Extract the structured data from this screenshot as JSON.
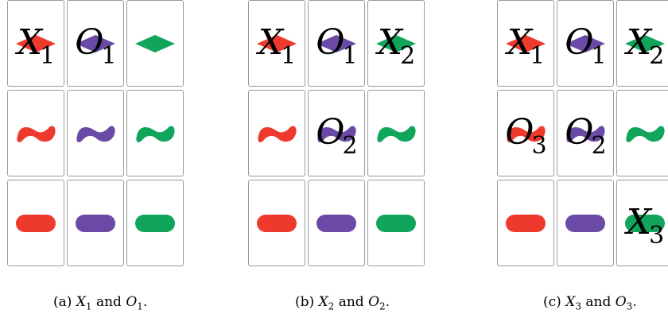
{
  "colors": {
    "red": "#ee3a2d",
    "purple": "#6a4aa6",
    "green": "#10a55a"
  },
  "shapes": {
    "rows": [
      "diamond",
      "squiggle",
      "oval"
    ],
    "cols": [
      "red",
      "purple",
      "green"
    ]
  },
  "panels": [
    {
      "caption_prefix": "(a)",
      "caption_sym1": "X",
      "caption_sub1": "1",
      "caption_and": "and",
      "caption_sym2": "O",
      "caption_sub2": "1",
      "caption_end": ".",
      "marks": [
        {
          "row": 0,
          "col": 0,
          "sym": "X",
          "sub": "1"
        },
        {
          "row": 0,
          "col": 1,
          "sym": "O",
          "sub": "1"
        }
      ]
    },
    {
      "caption_prefix": "(b)",
      "caption_sym1": "X",
      "caption_sub1": "2",
      "caption_and": "and",
      "caption_sym2": "O",
      "caption_sub2": "2",
      "caption_end": ".",
      "marks": [
        {
          "row": 0,
          "col": 0,
          "sym": "X",
          "sub": "1"
        },
        {
          "row": 0,
          "col": 1,
          "sym": "O",
          "sub": "1"
        },
        {
          "row": 0,
          "col": 2,
          "sym": "X",
          "sub": "2"
        },
        {
          "row": 1,
          "col": 1,
          "sym": "O",
          "sub": "2"
        }
      ]
    },
    {
      "caption_prefix": "(c)",
      "caption_sym1": "X",
      "caption_sub1": "3",
      "caption_and": "and",
      "caption_sym2": "O",
      "caption_sub2": "3",
      "caption_end": ".",
      "marks": [
        {
          "row": 0,
          "col": 0,
          "sym": "X",
          "sub": "1"
        },
        {
          "row": 0,
          "col": 1,
          "sym": "O",
          "sub": "1"
        },
        {
          "row": 0,
          "col": 2,
          "sym": "X",
          "sub": "2"
        },
        {
          "row": 1,
          "col": 0,
          "sym": "O",
          "sub": "3"
        },
        {
          "row": 1,
          "col": 1,
          "sym": "O",
          "sub": "2"
        },
        {
          "row": 2,
          "col": 2,
          "sym": "X",
          "sub": "3"
        }
      ]
    }
  ]
}
